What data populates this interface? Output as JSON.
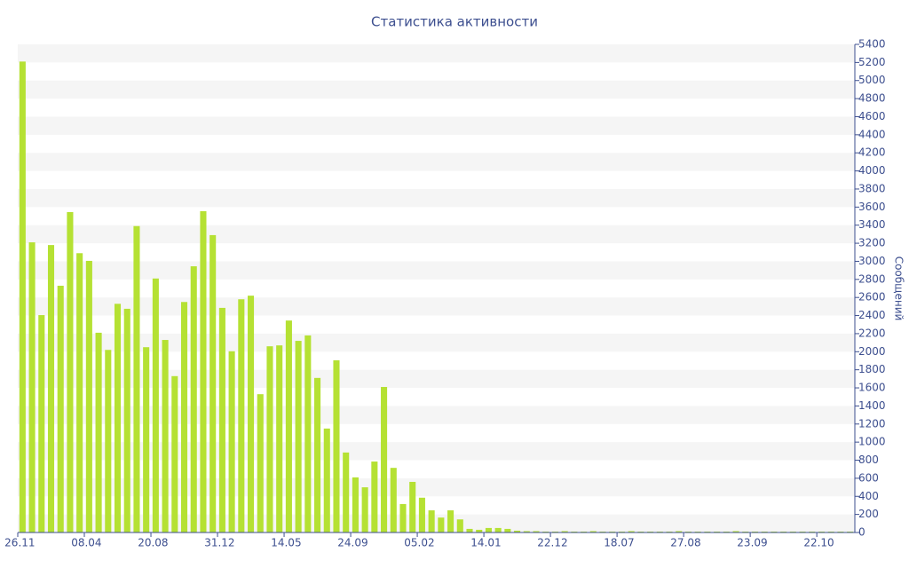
{
  "chart_data": {
    "type": "bar",
    "title": "Статистика активности",
    "y_label": "Сообщений",
    "categories": [
      "26.11",
      null,
      null,
      null,
      null,
      null,
      null,
      "08.04",
      null,
      null,
      null,
      null,
      null,
      null,
      "20.08",
      null,
      null,
      null,
      null,
      null,
      null,
      "31.12",
      null,
      null,
      null,
      null,
      null,
      null,
      "14.05",
      null,
      null,
      null,
      null,
      null,
      null,
      "24.09",
      null,
      null,
      null,
      null,
      null,
      null,
      "05.02",
      null,
      null,
      null,
      null,
      null,
      null,
      "14.01",
      null,
      null,
      null,
      null,
      null,
      null,
      "22.12",
      null,
      null,
      null,
      null,
      null,
      null,
      "18.07",
      null,
      null,
      null,
      null,
      null,
      null,
      "27.08",
      null,
      null,
      null,
      null,
      null,
      null,
      "23.09",
      null,
      null,
      null,
      null,
      null,
      null,
      "22.10",
      null,
      null,
      null
    ],
    "values": [
      5210,
      3210,
      2405,
      3180,
      2730,
      3545,
      3090,
      3005,
      2210,
      2020,
      2530,
      2475,
      3390,
      2050,
      2810,
      2130,
      1730,
      2550,
      2945,
      3555,
      3290,
      2485,
      2005,
      2580,
      2620,
      1530,
      2060,
      2070,
      2345,
      2120,
      2180,
      1710,
      1150,
      1905,
      885,
      610,
      500,
      785,
      1610,
      715,
      315,
      560,
      385,
      245,
      165,
      245,
      145,
      40,
      30,
      50,
      50,
      40,
      20,
      15,
      15,
      10,
      10,
      15,
      10,
      10,
      15,
      10,
      10,
      10,
      15,
      10,
      10,
      10,
      10,
      15,
      10,
      10,
      10,
      10,
      10,
      15,
      10,
      10,
      10,
      10,
      10,
      10,
      10,
      10,
      10,
      10,
      10,
      10
    ],
    "color": "#b5e133",
    "ylim": [
      0,
      5400
    ],
    "yticks": [
      0,
      200,
      400,
      600,
      800,
      1000,
      1200,
      1400,
      1600,
      1800,
      2000,
      2200,
      2400,
      2600,
      2800,
      3000,
      3200,
      3400,
      3600,
      3800,
      4000,
      4200,
      4400,
      4600,
      4800,
      5000,
      5200,
      5400
    ],
    "grid": "bands"
  }
}
